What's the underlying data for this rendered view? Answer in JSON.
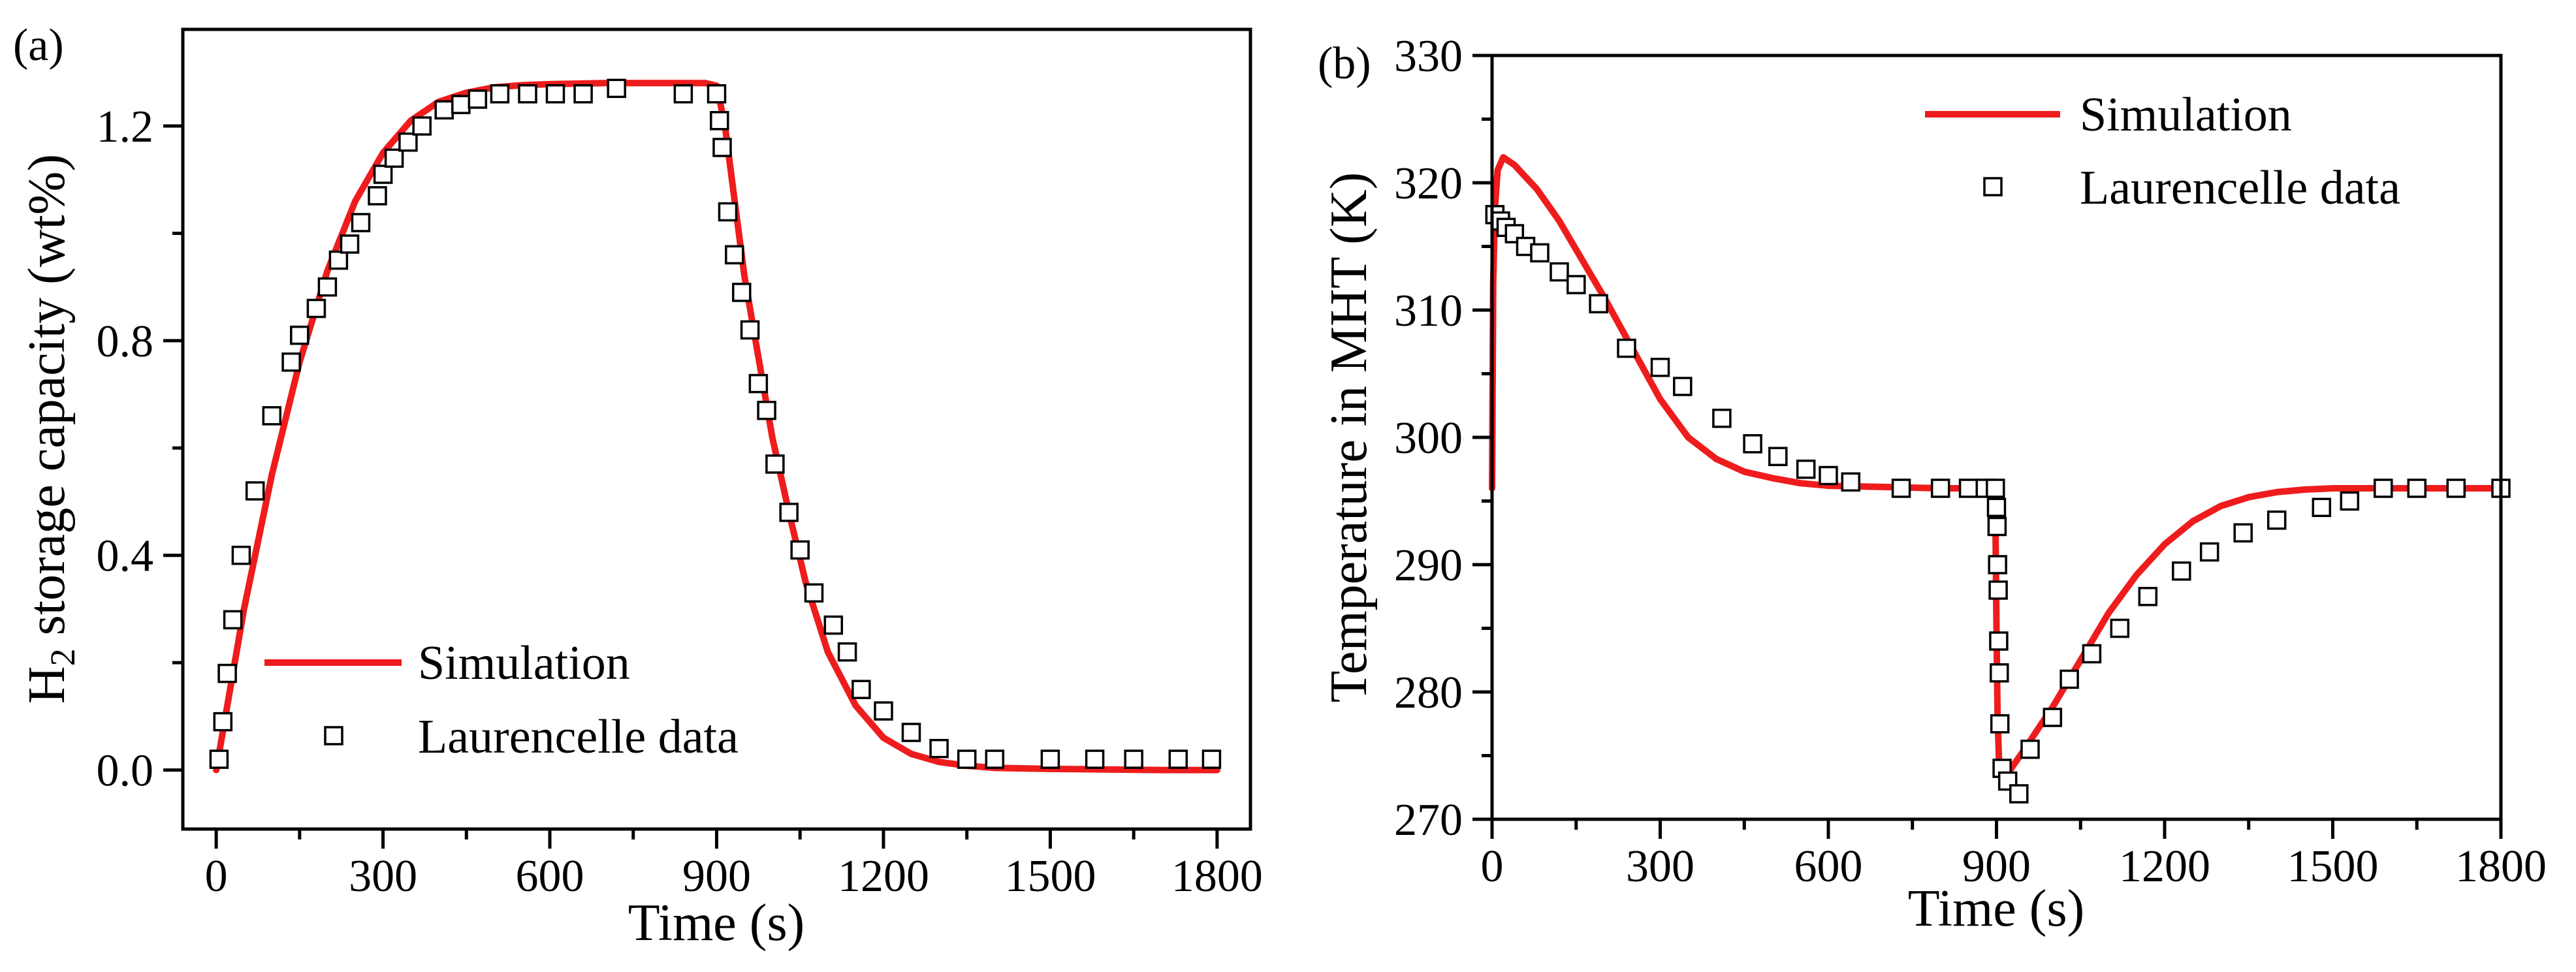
{
  "colors": {
    "simulation": "#ee1c1c",
    "markers": "#000000",
    "axes": "#000000",
    "background": "#ffffff"
  },
  "chart_data": [
    {
      "panel": "(a)",
      "type": "line+scatter",
      "xlabel": "Time (s)",
      "ylabel": {
        "main": "H",
        "sub": "2",
        "rest": " storage capacity (wt%)"
      },
      "xlim": [
        -60,
        1860
      ],
      "ylim": [
        -0.11,
        1.38
      ],
      "xticks": [
        0,
        300,
        600,
        900,
        1200,
        1500,
        1800
      ],
      "xtick_labels": [
        "0",
        "300",
        "600",
        "900",
        "1200",
        "1500",
        "1800"
      ],
      "yticks": [
        0.0,
        0.4,
        0.8,
        1.2
      ],
      "ytick_labels": [
        "0.0",
        "0.4",
        "0.8",
        "1.2"
      ],
      "legend": {
        "position": "lower-left",
        "simulation_label": "Simulation",
        "data_label": "Laurencelle data"
      },
      "series": [
        {
          "name": "Simulation",
          "kind": "line",
          "x": [
            0,
            20,
            50,
            100,
            150,
            200,
            250,
            300,
            350,
            400,
            450,
            500,
            550,
            600,
            700,
            800,
            880,
            900,
            915,
            930,
            950,
            970,
            1000,
            1030,
            1060,
            1100,
            1150,
            1200,
            1250,
            1300,
            1350,
            1400,
            1500,
            1600,
            1700,
            1800
          ],
          "y": [
            0.0,
            0.12,
            0.3,
            0.55,
            0.76,
            0.93,
            1.06,
            1.15,
            1.21,
            1.245,
            1.262,
            1.272,
            1.276,
            1.278,
            1.28,
            1.28,
            1.28,
            1.275,
            1.2,
            1.08,
            0.92,
            0.8,
            0.62,
            0.48,
            0.35,
            0.22,
            0.12,
            0.06,
            0.03,
            0.015,
            0.008,
            0.004,
            0.002,
            0.001,
            0.0,
            0.0
          ]
        },
        {
          "name": "Laurencelle data",
          "kind": "scatter",
          "x": [
            5,
            12,
            20,
            30,
            45,
            70,
            100,
            135,
            150,
            180,
            200,
            220,
            240,
            260,
            290,
            300,
            320,
            345,
            370,
            410,
            440,
            470,
            510,
            560,
            610,
            660,
            720,
            840,
            900,
            905,
            910,
            920,
            932,
            945,
            960,
            975,
            990,
            1005,
            1030,
            1050,
            1075,
            1110,
            1135,
            1160,
            1200,
            1250,
            1300,
            1350,
            1400,
            1500,
            1580,
            1650,
            1730,
            1790
          ],
          "y": [
            0.02,
            0.09,
            0.18,
            0.28,
            0.4,
            0.52,
            0.66,
            0.76,
            0.81,
            0.86,
            0.9,
            0.95,
            0.98,
            1.02,
            1.07,
            1.11,
            1.14,
            1.17,
            1.2,
            1.23,
            1.24,
            1.25,
            1.26,
            1.26,
            1.26,
            1.26,
            1.27,
            1.26,
            1.26,
            1.21,
            1.16,
            1.04,
            0.96,
            0.89,
            0.82,
            0.72,
            0.67,
            0.57,
            0.48,
            0.41,
            0.33,
            0.27,
            0.22,
            0.15,
            0.11,
            0.07,
            0.04,
            0.02,
            0.02,
            0.02,
            0.02,
            0.02,
            0.02,
            0.02
          ]
        }
      ]
    },
    {
      "panel": "(b)",
      "type": "line+scatter",
      "xlabel": "Time (s)",
      "ylabel": "Temperature in MHT (K)",
      "xlim": [
        0,
        1800
      ],
      "ylim": [
        270,
        330
      ],
      "xticks": [
        0,
        300,
        600,
        900,
        1200,
        1500,
        1800
      ],
      "xtick_labels": [
        "0",
        "300",
        "600",
        "900",
        "1200",
        "1500",
        "1800"
      ],
      "yticks": [
        270,
        280,
        290,
        300,
        310,
        320,
        330
      ],
      "ytick_labels": [
        "270",
        "280",
        "290",
        "300",
        "310",
        "320",
        "330"
      ],
      "legend": {
        "position": "top-right",
        "simulation_label": "Simulation",
        "data_label": "Laurencelle data"
      },
      "series": [
        {
          "name": "Simulation",
          "kind": "line",
          "x": [
            0,
            2,
            5,
            10,
            20,
            40,
            80,
            120,
            160,
            200,
            250,
            300,
            350,
            400,
            450,
            500,
            550,
            600,
            700,
            800,
            880,
            895,
            898,
            900,
            902,
            905,
            910,
            920,
            950,
            1000,
            1050,
            1100,
            1150,
            1200,
            1250,
            1300,
            1350,
            1400,
            1450,
            1500,
            1600,
            1700,
            1800
          ],
          "y": [
            296,
            312,
            318,
            321,
            322,
            321.4,
            319.5,
            317,
            314,
            311,
            307,
            303,
            300,
            298.3,
            297.3,
            296.8,
            296.4,
            296.2,
            296.1,
            296,
            296,
            296,
            294,
            285,
            278,
            274,
            273,
            273.6,
            275.5,
            278.8,
            282.5,
            286.2,
            289.2,
            291.6,
            293.4,
            294.6,
            295.3,
            295.7,
            295.9,
            296,
            296,
            296,
            296
          ]
        },
        {
          "name": "Laurencelle data",
          "kind": "scatter",
          "x": [
            5,
            15,
            25,
            40,
            60,
            85,
            120,
            150,
            190,
            240,
            300,
            340,
            410,
            465,
            510,
            560,
            600,
            640,
            730,
            800,
            850,
            880,
            898,
            900,
            901,
            902,
            903,
            904,
            905,
            906,
            910,
            920,
            940,
            960,
            1000,
            1030,
            1070,
            1120,
            1170,
            1230,
            1280,
            1340,
            1400,
            1480,
            1530,
            1590,
            1650,
            1720,
            1800
          ],
          "y": [
            317.5,
            317,
            316.5,
            316,
            315,
            314.5,
            313,
            312,
            310.5,
            307,
            305.5,
            304,
            301.5,
            299.5,
            298.5,
            297.5,
            297,
            296.5,
            296,
            296,
            296,
            296,
            296,
            294.5,
            293,
            290,
            288,
            284,
            281.5,
            277.5,
            274,
            273,
            272,
            275.5,
            278,
            281,
            283,
            285,
            287.5,
            289.5,
            291,
            292.5,
            293.5,
            294.5,
            295,
            296,
            296,
            296,
            296
          ]
        }
      ]
    }
  ]
}
